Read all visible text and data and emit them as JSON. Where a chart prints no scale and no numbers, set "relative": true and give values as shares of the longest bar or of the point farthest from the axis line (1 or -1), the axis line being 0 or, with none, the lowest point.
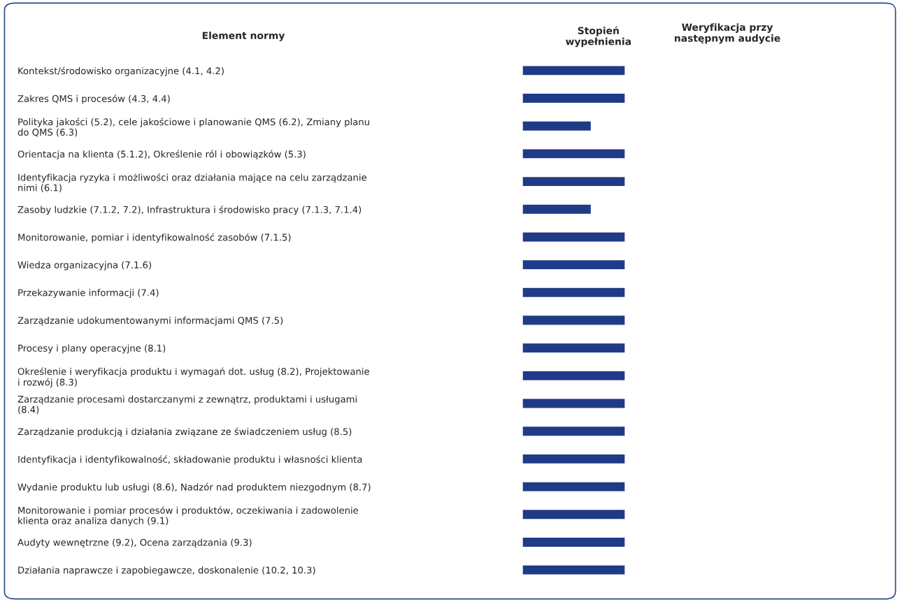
{
  "chart_data": {
    "type": "bar",
    "orientation": "horizontal",
    "relative": true,
    "title": "Stopień\nwypełnienia",
    "ylabel": "Element normy",
    "annotations": [
      "Weryfikacja przy\nnastępnym audycie"
    ],
    "color": "#1f3a86",
    "legend": false,
    "grid": false,
    "categories": [
      "Kontekst/środowisko organizacyjne (4.1, 4.2)",
      "Zakres QMS i procesów (4.3, 4.4)",
      "Polityka jakości (5.2), cele jakościowe i planowanie QMS (6.2), Zmiany planu\ndo QMS (6.3)",
      "Orientacja na klienta (5.1.2), Określenie ról i obowiązków (5.3)",
      "Identyfikacja ryzyka i możliwości oraz działania mające na celu zarządzanie\nnimi (6.1)",
      "Zasoby ludzkie (7.1.2, 7.2), Infrastruktura i środowisko pracy (7.1.3, 7.1.4)",
      "Monitorowanie, pomiar i identyfikowalność zasobów (7.1.5)",
      "Wiedza organizacyjna (7.1.6)",
      "Przekazywanie informacji (7.4)",
      "Zarządzanie udokumentowanymi informacjami QMS (7.5)",
      "Procesy i plany operacyjne (8.1)",
      "Określenie i weryfikacja produktu i wymagań dot. usług (8.2), Projektowanie\ni rozwój (8.3)",
      "Zarządzanie procesami dostarczanymi z zewnątrz, produktami i usługami\n(8.4)",
      "Zarządzanie produkcją i działania związane ze świadczeniem usług (8.5)",
      "Identyfikacja i identyfikowalność, składowanie produktu i własności klienta",
      "Wydanie produktu lub usługi (8.6), Nadzór nad produktem niezgodnym (8.7)",
      "Monitorowanie i pomiar procesów i produktów, oczekiwania i zadowolenie\nklienta oraz analiza danych (9.1)",
      "Audyty wewnętrzne (9.2), Ocena zarządzania (9.3)",
      "Działania naprawcze i zapobiegawcze, doskonalenie (10.2, 10.3)"
    ],
    "values": [
      1,
      1,
      0.67,
      1,
      1,
      0.67,
      1,
      1,
      1,
      1,
      1,
      1,
      1,
      1,
      1,
      1,
      1,
      1,
      1
    ]
  }
}
